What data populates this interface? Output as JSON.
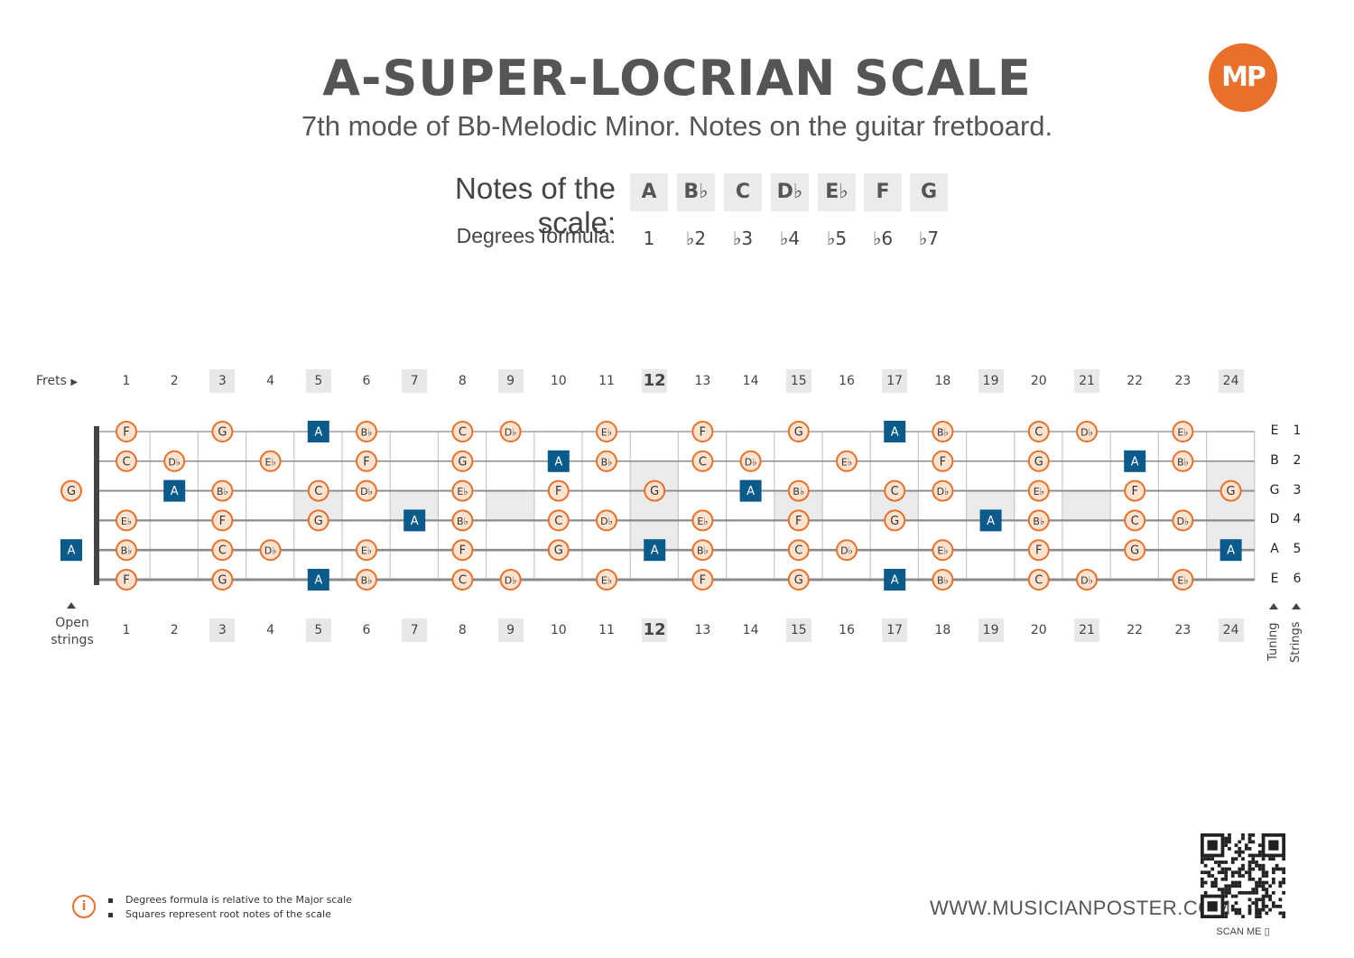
{
  "header": {
    "title": "A-SUPER-LOCRIAN SCALE",
    "subtitle": "7th mode of Bb-Melodic Minor. Notes on the guitar fretboard.",
    "logo": "MP"
  },
  "scale": {
    "notes_label": "Notes of the scale:",
    "notes": [
      "A",
      "B♭",
      "C",
      "D♭",
      "E♭",
      "F",
      "G"
    ],
    "degrees_label": "Degrees formula:",
    "degrees": [
      "1",
      "♭2",
      "♭3",
      "♭4",
      "♭5",
      "♭6",
      "♭7"
    ]
  },
  "fretboard": {
    "frets_label": "Frets",
    "fret_numbers": [
      "1",
      "2",
      "3",
      "4",
      "5",
      "6",
      "7",
      "8",
      "9",
      "10",
      "11",
      "12",
      "13",
      "14",
      "15",
      "16",
      "17",
      "18",
      "19",
      "20",
      "21",
      "22",
      "23",
      "24"
    ],
    "marked_frets": [
      3,
      5,
      7,
      9,
      12,
      15,
      17,
      19,
      21,
      24
    ],
    "open_label_line1": "Open",
    "open_label_line2": "strings",
    "tuning_label": "Tuning",
    "strings_label": "Strings",
    "tuning": [
      "E",
      "B",
      "G",
      "D",
      "A",
      "E"
    ],
    "string_numbers": [
      "1",
      "2",
      "3",
      "4",
      "5",
      "6"
    ],
    "root": "A",
    "open_notes": {
      "string3": "G",
      "string5": "A"
    },
    "positions": [
      {
        "string": 1,
        "notes": [
          [
            "F",
            1
          ],
          [
            "G",
            3
          ],
          [
            "A",
            5
          ],
          [
            "B♭",
            6
          ],
          [
            "C",
            8
          ],
          [
            "D♭",
            9
          ],
          [
            "E♭",
            11
          ],
          [
            "F",
            13
          ],
          [
            "G",
            15
          ],
          [
            "A",
            17
          ],
          [
            "B♭",
            18
          ],
          [
            "C",
            20
          ],
          [
            "D♭",
            21
          ],
          [
            "E♭",
            23
          ]
        ]
      },
      {
        "string": 2,
        "notes": [
          [
            "C",
            1
          ],
          [
            "D♭",
            2
          ],
          [
            "E♭",
            4
          ],
          [
            "F",
            6
          ],
          [
            "G",
            8
          ],
          [
            "A",
            10
          ],
          [
            "B♭",
            11
          ],
          [
            "C",
            13
          ],
          [
            "D♭",
            14
          ],
          [
            "E♭",
            16
          ],
          [
            "F",
            18
          ],
          [
            "G",
            20
          ],
          [
            "A",
            22
          ],
          [
            "B♭",
            23
          ]
        ]
      },
      {
        "string": 3,
        "notes": [
          [
            "A",
            2
          ],
          [
            "B♭",
            3
          ],
          [
            "C",
            5
          ],
          [
            "D♭",
            6
          ],
          [
            "E♭",
            8
          ],
          [
            "F",
            10
          ],
          [
            "G",
            12
          ],
          [
            "A",
            14
          ],
          [
            "B♭",
            15
          ],
          [
            "C",
            17
          ],
          [
            "D♭",
            18
          ],
          [
            "E♭",
            20
          ],
          [
            "F",
            22
          ],
          [
            "G",
            24
          ]
        ]
      },
      {
        "string": 4,
        "notes": [
          [
            "E♭",
            1
          ],
          [
            "F",
            3
          ],
          [
            "G",
            5
          ],
          [
            "A",
            7
          ],
          [
            "B♭",
            8
          ],
          [
            "C",
            10
          ],
          [
            "D♭",
            11
          ],
          [
            "E♭",
            13
          ],
          [
            "F",
            15
          ],
          [
            "G",
            17
          ],
          [
            "A",
            19
          ],
          [
            "B♭",
            20
          ],
          [
            "C",
            22
          ],
          [
            "D♭",
            23
          ]
        ]
      },
      {
        "string": 5,
        "notes": [
          [
            "B♭",
            1
          ],
          [
            "C",
            3
          ],
          [
            "D♭",
            4
          ],
          [
            "E♭",
            6
          ],
          [
            "F",
            8
          ],
          [
            "G",
            10
          ],
          [
            "A",
            12
          ],
          [
            "B♭",
            13
          ],
          [
            "C",
            15
          ],
          [
            "D♭",
            16
          ],
          [
            "E♭",
            18
          ],
          [
            "F",
            20
          ],
          [
            "G",
            22
          ],
          [
            "A",
            24
          ]
        ]
      },
      {
        "string": 6,
        "notes": [
          [
            "F",
            1
          ],
          [
            "G",
            3
          ],
          [
            "A",
            5
          ],
          [
            "B♭",
            6
          ],
          [
            "C",
            8
          ],
          [
            "D♭",
            9
          ],
          [
            "E♭",
            11
          ],
          [
            "F",
            13
          ],
          [
            "G",
            15
          ],
          [
            "A",
            17
          ],
          [
            "B♭",
            18
          ],
          [
            "C",
            20
          ],
          [
            "D♭",
            21
          ],
          [
            "E♭",
            23
          ]
        ]
      }
    ]
  },
  "footer": {
    "info_icon": "i",
    "note1": "Degrees formula is relative to the Major scale",
    "note2": "Squares represent root notes of the scale",
    "website": "WWW.MUSICIANPOSTER.COM",
    "scan": "SCAN ME"
  },
  "colors": {
    "accent": "#e8702a",
    "root_fill": "#0b5a8c",
    "note_fill": "#fbe3d0",
    "text": "#555555"
  }
}
